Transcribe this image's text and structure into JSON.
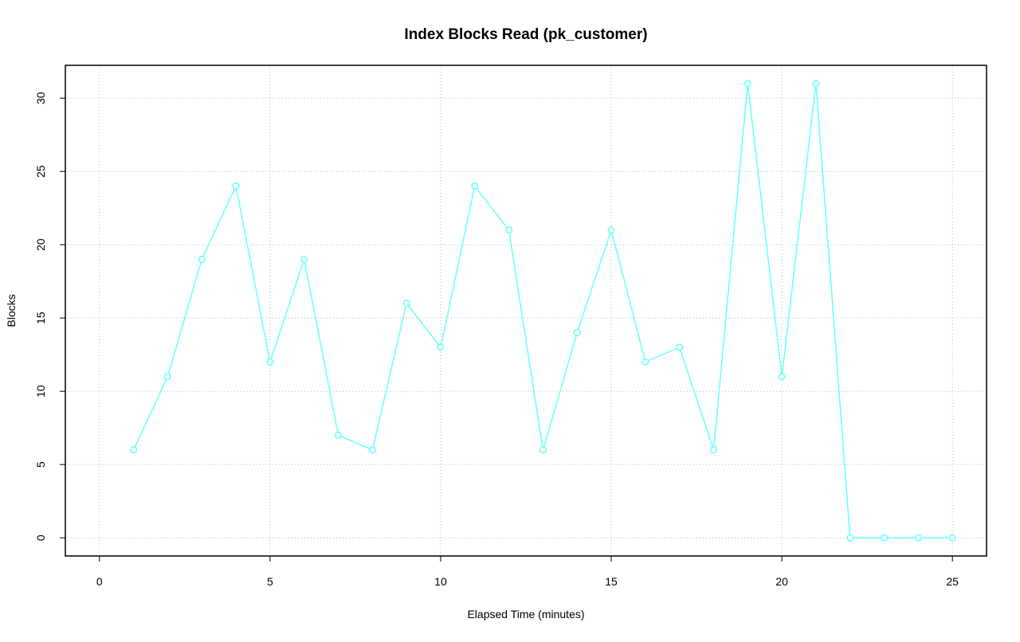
{
  "chart_data": {
    "type": "line",
    "title": "Index Blocks Read (pk_customer)",
    "x_label": "Elapsed Time (minutes)",
    "y_label": "Blocks",
    "x": [
      1,
      2,
      3,
      4,
      5,
      6,
      7,
      8,
      9,
      10,
      11,
      12,
      13,
      14,
      15,
      16,
      17,
      18,
      19,
      20,
      21,
      22,
      23,
      24,
      25
    ],
    "series": [
      {
        "name": "pk_customer",
        "color": "#66ffff",
        "values": [
          6,
          11,
          19,
          24,
          12,
          19,
          7,
          6,
          16,
          13,
          24,
          21,
          6,
          14,
          21,
          12,
          13,
          6,
          31,
          11,
          31,
          0,
          0,
          0,
          0
        ]
      }
    ],
    "xlim": [
      -1,
      26
    ],
    "ylim": [
      -1.24,
      32.24
    ],
    "xticks": [
      0,
      5,
      10,
      15,
      20,
      25
    ],
    "yticks": [
      0,
      5,
      10,
      15,
      20,
      25,
      30
    ],
    "grid": true
  }
}
